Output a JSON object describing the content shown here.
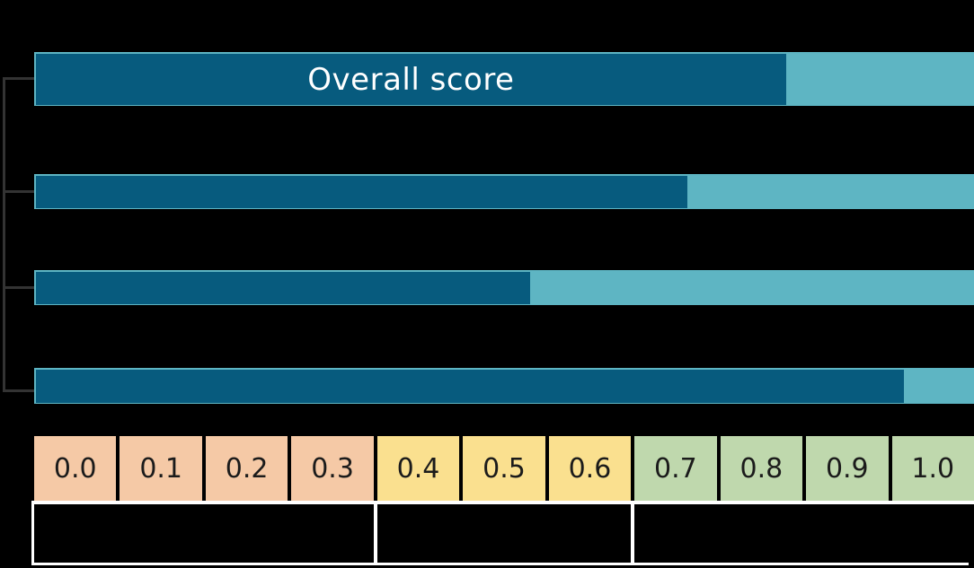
{
  "chart_data": {
    "type": "bar",
    "orientation": "horizontal",
    "title": "Overall score",
    "x_range": [
      0.0,
      1.0
    ],
    "grid": false,
    "legend": false,
    "bars": [
      {
        "label": "Overall score",
        "value": 0.8
      },
      {
        "label": "",
        "value": 0.695
      },
      {
        "label": "",
        "value": 0.528
      },
      {
        "label": "",
        "value": 0.925
      }
    ],
    "x_axis": {
      "ticks": [
        "0.0",
        "0.1",
        "0.2",
        "0.3",
        "0.4",
        "0.5",
        "0.6",
        "0.7",
        "0.8",
        "0.9",
        "1.0"
      ],
      "bands": [
        {
          "cells": 4,
          "range": [
            0.0,
            0.3
          ],
          "color": "#F5C9A6"
        },
        {
          "cells": 3,
          "range": [
            0.4,
            0.6
          ],
          "color": "#FAE08F"
        },
        {
          "cells": 4,
          "range": [
            0.7,
            1.0
          ],
          "color": "#BFD8AD"
        }
      ]
    },
    "category_groups": [
      {
        "label": ""
      },
      {
        "label": ""
      },
      {
        "label": ""
      }
    ]
  },
  "colors": {
    "background": "#000000",
    "bar_fill": "#075B7E",
    "bar_track": "#5EB5C3",
    "connector": "#333333",
    "tick_text": "#1B1B1B",
    "bar_label_text": "#FFFFFF",
    "grid_lines": "#FFFFFF"
  }
}
